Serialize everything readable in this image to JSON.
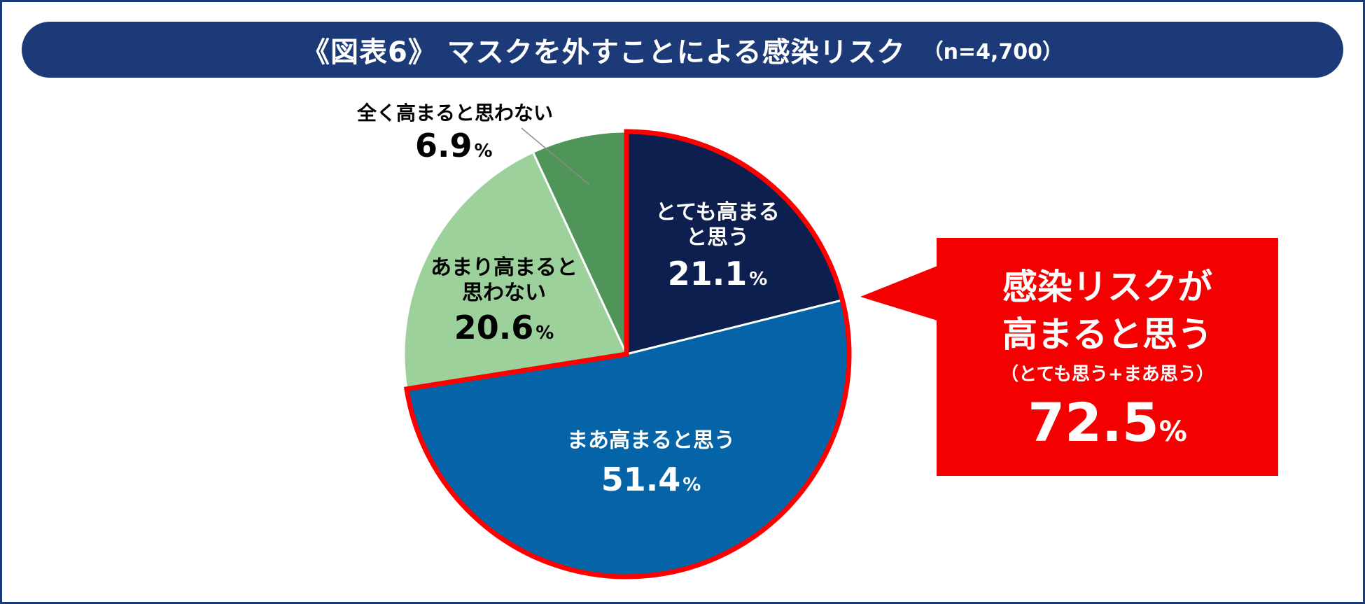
{
  "title": "《図表6》 マスクを外すことによる感染リスク",
  "sample_size": "（n=4,700）",
  "colors": {
    "frame": "#1c3a78",
    "highlight": "#ff0000",
    "callout_bg": "#f50000"
  },
  "chart_data": {
    "type": "pie",
    "start_angle_deg": 0,
    "direction": "clockwise",
    "unit": "%",
    "slices": [
      {
        "label": "とても高まると思う",
        "label_lines": [
          "とても高まる",
          "と思う"
        ],
        "value": 21.1,
        "value_text": "21.1",
        "color": "#0d1f4f",
        "text_color": "#ffffff"
      },
      {
        "label": "まあ高まると思う",
        "label_lines": [
          "まあ高まると思う"
        ],
        "value": 51.4,
        "value_text": "51.4",
        "color": "#0563a7",
        "text_color": "#ffffff"
      },
      {
        "label": "あまり高まると思わない",
        "label_lines": [
          "あまり高まると",
          "思わない"
        ],
        "value": 20.6,
        "value_text": "20.6",
        "color": "#9dd19c",
        "text_color": "#000000"
      },
      {
        "label": "全く高まると思わない",
        "label_lines": [
          "全く高まると思わない"
        ],
        "value": 6.9,
        "value_text": "6.9",
        "color": "#4f955a",
        "text_color": "#000000"
      }
    ],
    "highlight_group": [
      0,
      1
    ],
    "callout": {
      "head_lines": [
        "感染リスクが",
        "高まると思う"
      ],
      "sub": "（とても思う+まあ思う）",
      "total": "72.5",
      "unit": "%"
    }
  }
}
